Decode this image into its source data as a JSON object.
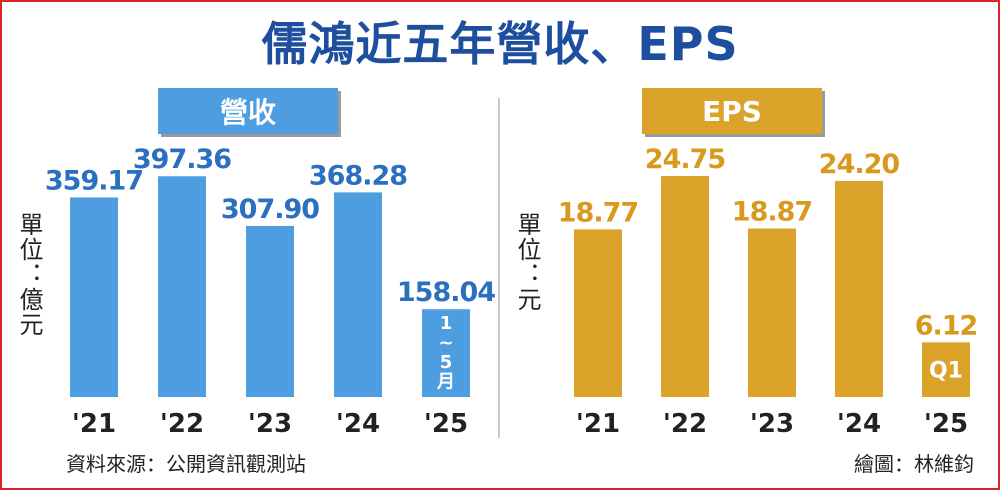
{
  "title": "儒鴻近五年營收、EPS",
  "footer": {
    "source": "資料來源：公開資訊觀測站",
    "credit": "繪圖：林維鈞"
  },
  "colors": {
    "title": "#1d4f9e",
    "revenue_bar": "#4e9de0",
    "revenue_label": "#2a6fc0",
    "eps_bar": "#dca32a",
    "eps_label": "#d79a1c"
  },
  "chart_data": [
    {
      "type": "bar",
      "title": "營收",
      "ylabel": "單位：億元",
      "categories": [
        "'21",
        "'22",
        "'23",
        "'24",
        "'25"
      ],
      "values": [
        359.17,
        397.36,
        307.9,
        368.28,
        158.04
      ],
      "value_labels": [
        "359.17",
        "397.36",
        "307.90",
        "368.28",
        "158.04"
      ],
      "partial_note": "1~5月",
      "ylim": [
        0,
        450
      ],
      "grid": false
    },
    {
      "type": "bar",
      "title": "EPS",
      "ylabel": "單位：元",
      "categories": [
        "'21",
        "'22",
        "'23",
        "'24",
        "'25"
      ],
      "values": [
        18.77,
        24.75,
        18.87,
        24.2,
        6.12
      ],
      "value_labels": [
        "18.77",
        "24.75",
        "18.87",
        "24.20",
        "6.12"
      ],
      "partial_note": "Q1",
      "ylim": [
        0,
        28
      ],
      "grid": false
    }
  ]
}
